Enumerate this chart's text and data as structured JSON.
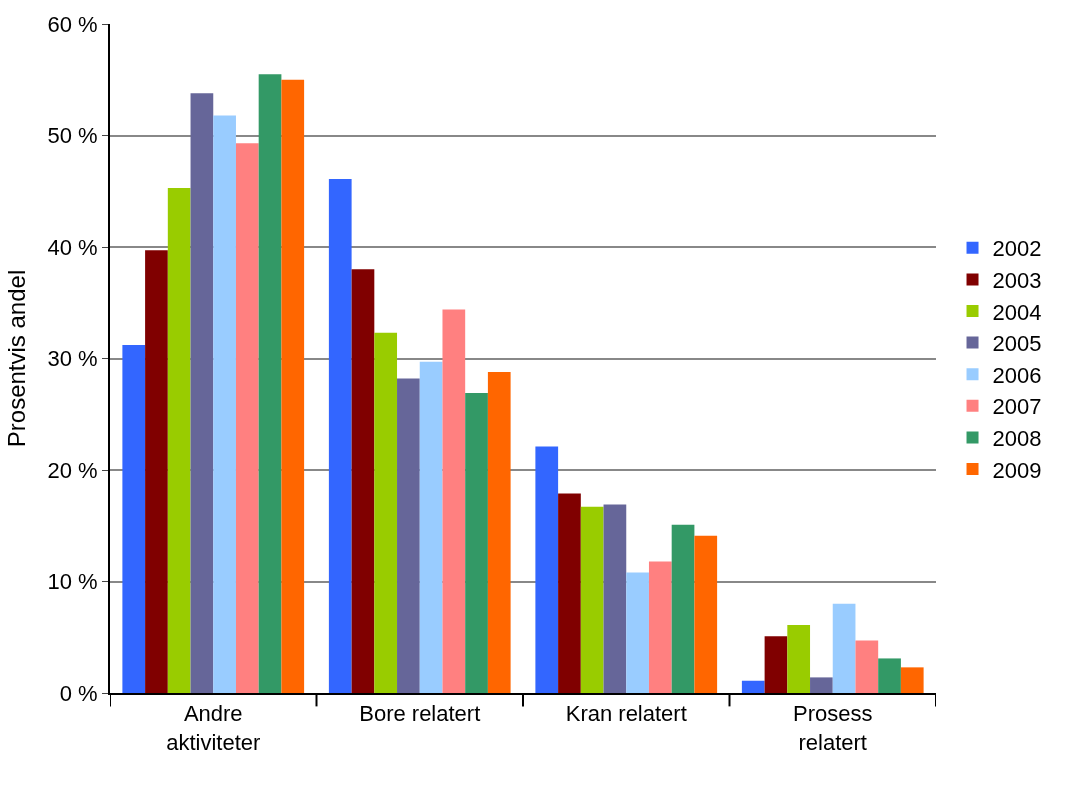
{
  "chart_data": {
    "type": "bar",
    "ylabel": "Prosentvis andel",
    "categories": [
      "Andre aktiviteter",
      "Bore relatert",
      "Kran relatert",
      "Prosess relatert"
    ],
    "series": [
      {
        "name": "2002",
        "color": "#3366ff",
        "values": [
          31.2,
          46.1,
          22.1,
          1.1
        ]
      },
      {
        "name": "2003",
        "color": "#800000",
        "values": [
          39.7,
          38.0,
          17.9,
          5.1
        ]
      },
      {
        "name": "2004",
        "color": "#99cc00",
        "values": [
          45.3,
          32.3,
          16.7,
          6.1
        ]
      },
      {
        "name": "2005",
        "color": "#666699",
        "values": [
          53.8,
          28.2,
          16.9,
          1.4
        ]
      },
      {
        "name": "2006",
        "color": "#99ccff",
        "values": [
          51.8,
          29.7,
          10.8,
          8.0
        ]
      },
      {
        "name": "2007",
        "color": "#ff8080",
        "values": [
          49.3,
          34.4,
          11.8,
          4.7
        ]
      },
      {
        "name": "2008",
        "color": "#339966",
        "values": [
          55.5,
          26.9,
          15.1,
          3.1
        ]
      },
      {
        "name": "2009",
        "color": "#ff6600",
        "values": [
          55.0,
          28.8,
          14.1,
          2.3
        ]
      }
    ],
    "ylim": [
      0,
      60
    ],
    "yticks": [
      {
        "value": 0,
        "label": "0 %"
      },
      {
        "value": 10,
        "label": "10 %"
      },
      {
        "value": 20,
        "label": "20 %"
      },
      {
        "value": 30,
        "label": "30 %"
      },
      {
        "value": 40,
        "label": "40 %"
      },
      {
        "value": 50,
        "label": "50 %"
      },
      {
        "value": 60,
        "label": "60 %"
      }
    ],
    "grid": "y",
    "legend": "right"
  }
}
